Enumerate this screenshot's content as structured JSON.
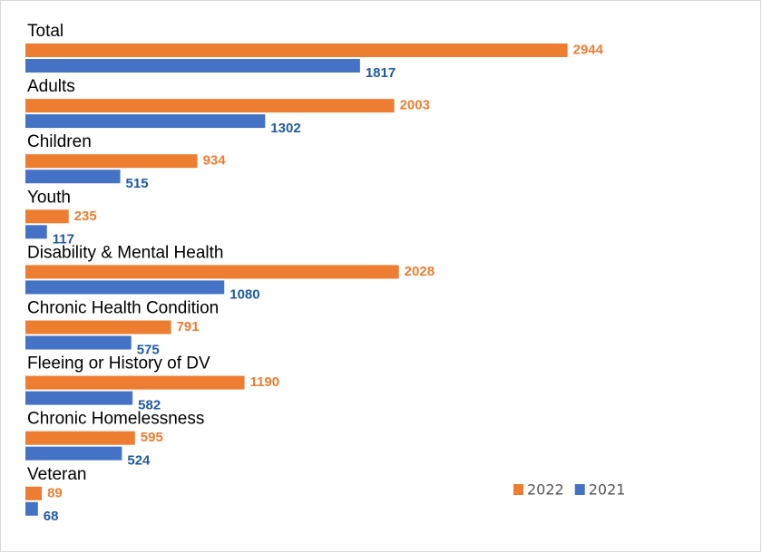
{
  "chart_data": {
    "type": "hbar",
    "categories": [
      "Total",
      "Adults",
      "Children",
      "Youth",
      "Disability & Mental Health",
      "Chronic Health Condition",
      "Fleeing or History of DV",
      "Chronic Homelessness",
      "Veteran"
    ],
    "series": [
      {
        "name": "2022",
        "color": "#ed7d31",
        "label_color": "#ed7d31",
        "values": [
          2944,
          2003,
          934,
          235,
          2028,
          791,
          1190,
          595,
          89
        ]
      },
      {
        "name": "2021",
        "color": "#4472c4",
        "label_color": "#1f5aa0",
        "values": [
          1817,
          1302,
          515,
          117,
          1080,
          575,
          582,
          524,
          68
        ]
      }
    ],
    "xlim": [
      0,
      3000
    ],
    "legend": "bottom-right"
  }
}
